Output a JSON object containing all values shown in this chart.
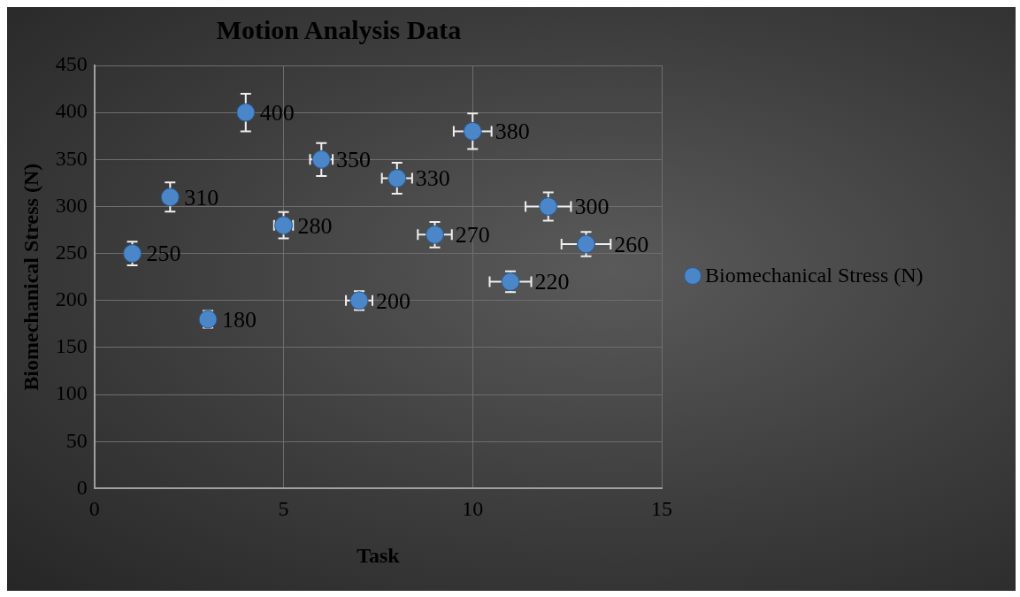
{
  "chart_data": {
    "type": "scatter",
    "title": "Motion Analysis Data",
    "xlabel": "Task",
    "ylabel": "Biomechanical Stress (N)",
    "x": [
      1,
      2,
      3,
      4,
      5,
      6,
      7,
      8,
      9,
      10,
      11,
      12,
      13
    ],
    "series": [
      {
        "name": "Biomechanical Stress (N)",
        "color": "#4a86c8",
        "values": [
          250,
          310,
          180,
          400,
          280,
          350,
          200,
          330,
          270,
          380,
          220,
          300,
          260
        ],
        "errors": [
          12.5,
          15.5,
          9,
          20,
          14,
          17.5,
          10,
          16.5,
          13.5,
          19,
          11,
          15,
          13
        ],
        "xerrors": [
          null,
          null,
          null,
          null,
          0.25,
          0.3,
          0.35,
          0.4,
          0.45,
          0.5,
          0.55,
          0.6,
          0.65
        ]
      }
    ],
    "xlim": [
      0,
      15
    ],
    "xticks": [
      0,
      5,
      10,
      15
    ],
    "ylim": [
      0,
      450
    ],
    "yticks": [
      0,
      50,
      100,
      150,
      200,
      250,
      300,
      350,
      400,
      450
    ],
    "grid": true,
    "legend": "right",
    "data_labels": true,
    "marker": "circle"
  }
}
